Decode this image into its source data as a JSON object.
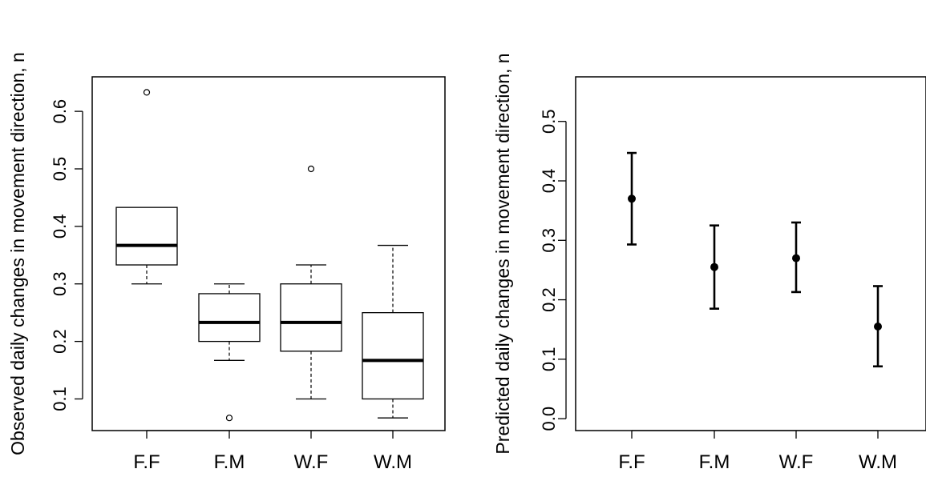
{
  "chart_data": [
    {
      "type": "boxplot",
      "title": "",
      "xlabel": "",
      "ylabel": "Observed daily changes in movement direction, n",
      "categories": [
        "F.F",
        "F.M",
        "W.F",
        "W.M"
      ],
      "ylim": [
        0.045,
        0.66
      ],
      "yticks": [
        0.1,
        0.2,
        0.3,
        0.4,
        0.5,
        0.6
      ],
      "ytick_labels": [
        "0.1",
        "0.2",
        "0.3",
        "0.4",
        "0.5",
        "0.6"
      ],
      "grid": false,
      "boxes": [
        {
          "category": "F.F",
          "whisker_low": 0.3,
          "q1": 0.333,
          "median": 0.367,
          "q3": 0.433,
          "whisker_high": 0.433,
          "outliers": [
            0.633
          ]
        },
        {
          "category": "F.M",
          "whisker_low": 0.167,
          "q1": 0.2,
          "median": 0.233,
          "q3": 0.283,
          "whisker_high": 0.3,
          "outliers": [
            0.067
          ]
        },
        {
          "category": "W.F",
          "whisker_low": 0.1,
          "q1": 0.183,
          "median": 0.233,
          "q3": 0.3,
          "whisker_high": 0.333,
          "outliers": [
            0.5
          ]
        },
        {
          "category": "W.M",
          "whisker_low": 0.067,
          "q1": 0.1,
          "median": 0.167,
          "q3": 0.25,
          "whisker_high": 0.367,
          "outliers": []
        }
      ]
    },
    {
      "type": "errorbar",
      "title": "",
      "xlabel": "",
      "ylabel": "Predicted daily changes in movement direction, n",
      "categories": [
        "F.F",
        "F.M",
        "W.F",
        "W.M"
      ],
      "ylim": [
        -0.02,
        0.575
      ],
      "yticks": [
        0.0,
        0.1,
        0.2,
        0.3,
        0.4,
        0.5
      ],
      "ytick_labels": [
        "0.0",
        "0.1",
        "0.2",
        "0.3",
        "0.4",
        "0.5"
      ],
      "grid": false,
      "points": [
        {
          "category": "F.F",
          "value": 0.37,
          "lower": 0.293,
          "upper": 0.447
        },
        {
          "category": "F.M",
          "value": 0.255,
          "lower": 0.185,
          "upper": 0.325
        },
        {
          "category": "W.F",
          "value": 0.27,
          "lower": 0.213,
          "upper": 0.33
        },
        {
          "category": "W.M",
          "value": 0.155,
          "lower": 0.088,
          "upper": 0.223
        }
      ]
    }
  ]
}
